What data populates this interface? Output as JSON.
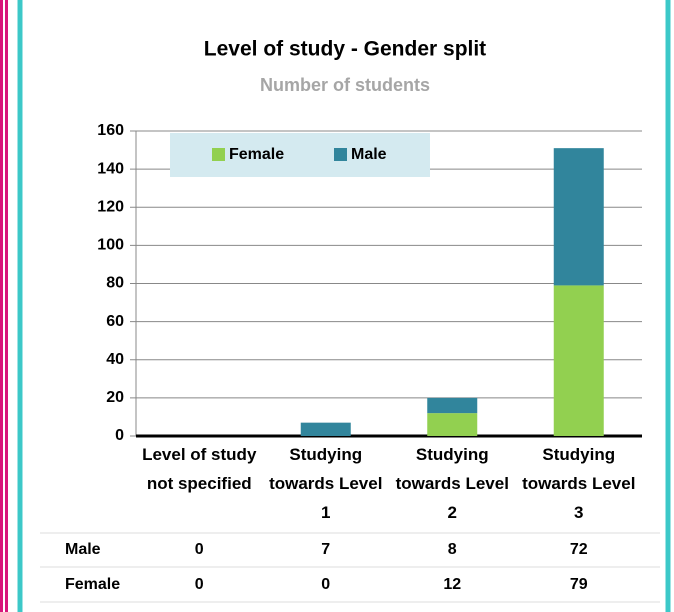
{
  "chart_data": {
    "type": "stacked_bar",
    "title": "Level of study - Gender split",
    "subtitle": "Number of students",
    "categories": [
      "Level of study not specified",
      "Studying towards Level 1",
      "Studying towards Level 2",
      "Studying towards Level 3"
    ],
    "series": [
      {
        "name": "Female",
        "color": "#92d050",
        "values": [
          0,
          0,
          12,
          79
        ]
      },
      {
        "name": "Male",
        "color": "#31859c",
        "values": [
          0,
          7,
          8,
          72
        ]
      }
    ],
    "ylim": [
      0,
      160
    ],
    "yticks": [
      0,
      20,
      40,
      60,
      80,
      100,
      120,
      140,
      160
    ],
    "grid": true,
    "legend": "top-left",
    "data_table": true
  }
}
